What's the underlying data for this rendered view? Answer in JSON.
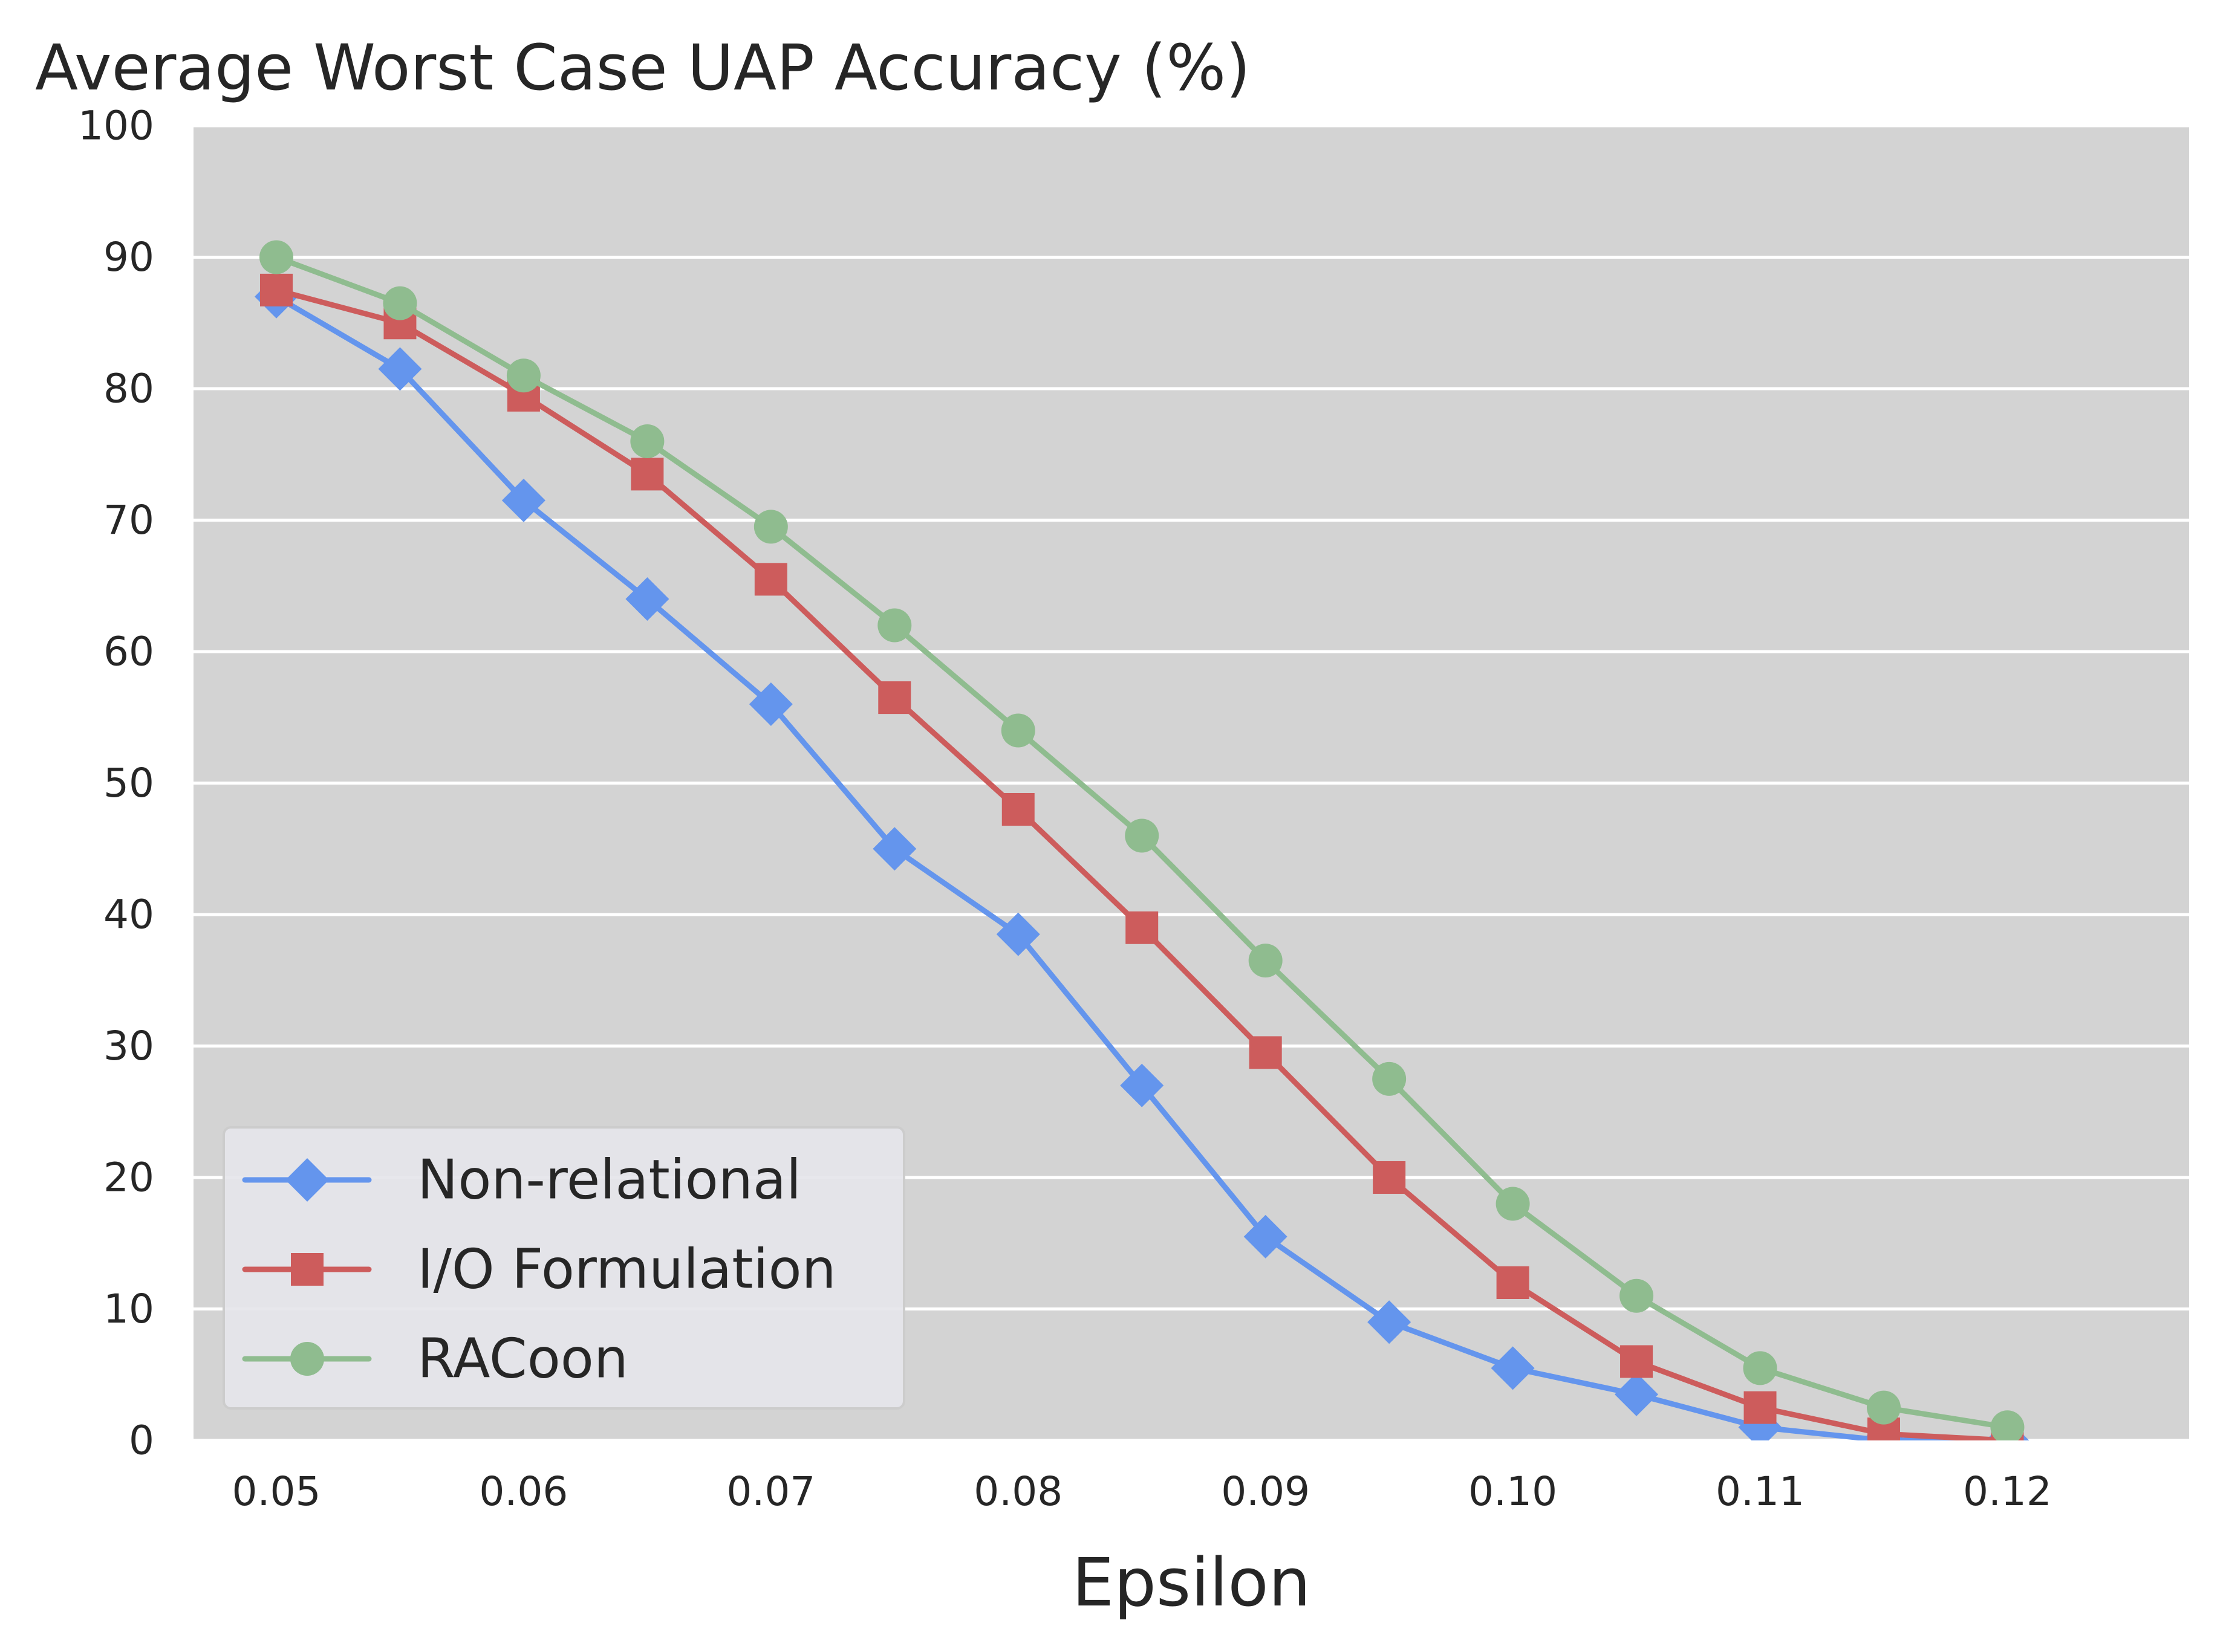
{
  "chart_data": {
    "type": "line",
    "title": "Average Worst Case UAP Accuracy (%)",
    "xlabel": "Epsilon",
    "ylabel": "",
    "x": [
      0.05,
      0.055,
      0.06,
      0.065,
      0.07,
      0.075,
      0.08,
      0.085,
      0.09,
      0.095,
      0.1,
      0.105,
      0.11,
      0.115,
      0.12
    ],
    "xticks": [
      0.05,
      0.06,
      0.07,
      0.08,
      0.09,
      0.1,
      0.11,
      0.12
    ],
    "xtick_labels": [
      "0.05",
      "0.06",
      "0.07",
      "0.08",
      "0.09",
      "0.10",
      "0.11",
      "0.12"
    ],
    "xlim": [
      0.04665,
      0.12735
    ],
    "yticks": [
      0,
      10,
      20,
      30,
      40,
      50,
      60,
      70,
      80,
      90,
      100
    ],
    "ytick_labels": [
      "0",
      "10",
      "20",
      "30",
      "40",
      "50",
      "60",
      "70",
      "80",
      "90",
      "100"
    ],
    "ylim": [
      0,
      100
    ],
    "grid": true,
    "legend_position": "lower-left",
    "series": [
      {
        "name": "Non-relational",
        "color": "#6495ED",
        "marker": "diamond",
        "values": [
          87,
          81.5,
          71.5,
          64,
          56,
          45,
          38.5,
          27,
          15.5,
          9,
          5.5,
          3.5,
          1,
          0,
          0
        ]
      },
      {
        "name": "I/O Formulation",
        "color": "#CD5C5C",
        "marker": "square",
        "values": [
          87.5,
          85,
          79.5,
          73.5,
          65.5,
          56.5,
          48,
          39,
          29.5,
          20,
          12,
          6,
          2.5,
          0.5,
          0
        ]
      },
      {
        "name": "RACoon",
        "color": "#8FBC8F",
        "marker": "circle",
        "values": [
          90,
          86.5,
          81,
          76,
          69.5,
          62,
          54,
          46,
          36.5,
          27.5,
          18,
          11,
          5.5,
          2.5,
          1
        ]
      }
    ]
  }
}
